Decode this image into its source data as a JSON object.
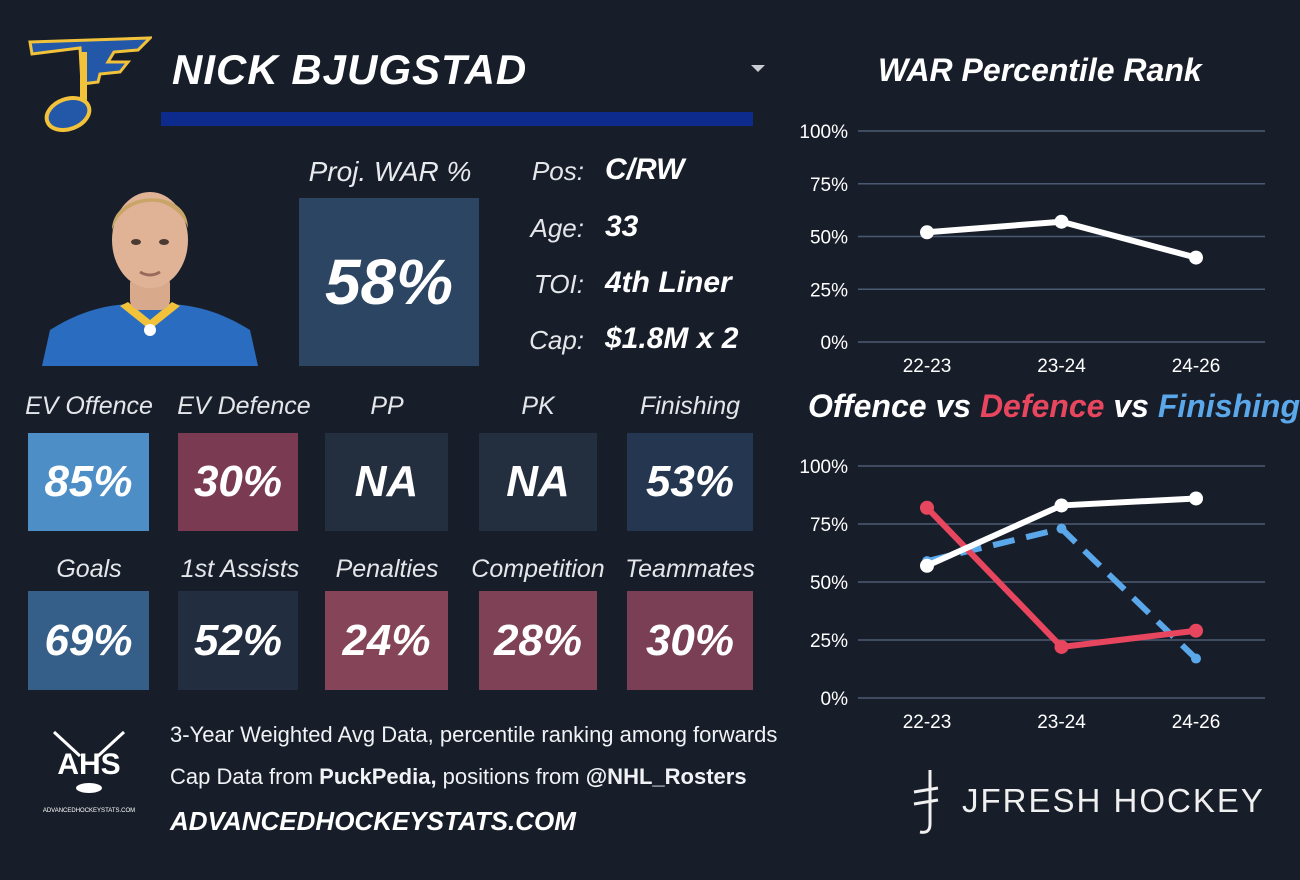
{
  "header": {
    "player_name": "NICK BJUGSTAD",
    "dropdown_icon": "triangle-down-icon",
    "team_logo": "blues-note-logo",
    "colors": {
      "name_bar": "#0c2b8c",
      "background": "#181e29"
    }
  },
  "profile": {
    "war_title": "Proj. WAR %",
    "war_value": "58%",
    "info": [
      {
        "label": "Pos:",
        "value": "C/RW"
      },
      {
        "label": "Age:",
        "value": "33"
      },
      {
        "label": "TOI:",
        "value": "4th Liner"
      },
      {
        "label": "Cap:",
        "value": "$1.8M x 2"
      }
    ]
  },
  "stats_row1": [
    {
      "label": "EV Offence",
      "value": "85%",
      "color": "#4d8ec7"
    },
    {
      "label": "EV Defence",
      "value": "30%",
      "color": "#7a3a52"
    },
    {
      "label": "PP",
      "value": "NA",
      "color": "#232f3f"
    },
    {
      "label": "PK",
      "value": "NA",
      "color": "#232f3f"
    },
    {
      "label": "Finishing",
      "value": "53%",
      "color": "#243650"
    }
  ],
  "stats_row2": [
    {
      "label": "Goals",
      "value": "69%",
      "color": "#355f89"
    },
    {
      "label": "1st Assists",
      "value": "52%",
      "color": "#222e3f"
    },
    {
      "label": "Penalties",
      "value": "24%",
      "color": "#864459"
    },
    {
      "label": "Competition",
      "value": "28%",
      "color": "#7e4156"
    },
    {
      "label": "Teammates",
      "value": "30%",
      "color": "#7a3f54"
    }
  ],
  "footer": {
    "note1": "3-Year Weighted Avg Data, percentile ranking among forwards",
    "note2_prefix": "Cap Data from ",
    "note2_source": "PuckPedia,",
    "note2_mid": " positions from ",
    "note2_handle": "@NHL_Rosters",
    "site": "ADVANCEDHOCKEYSTATS.COM",
    "ahs_logo_text": "AHS",
    "ahs_logo_subtext": "ADVANCEDHOCKEYSTATS.COM",
    "brand": "JFRESH HOCKEY"
  },
  "chart1_title": "WAR Percentile Rank",
  "chart2_title": {
    "part1": "Offence",
    "vs1": " vs ",
    "part2": "Defence",
    "vs2": " vs ",
    "part3": "Finishing"
  },
  "chart_data": [
    {
      "type": "line",
      "title": "WAR Percentile Rank",
      "categories": [
        "22-23",
        "23-24",
        "24-26"
      ],
      "yticks": [
        "0%",
        "25%",
        "50%",
        "75%",
        "100%"
      ],
      "ylim": [
        0,
        100
      ],
      "grid": true,
      "series": [
        {
          "values": [
            52,
            57,
            40
          ],
          "color": "#ffffff",
          "dashed": false
        }
      ]
    },
    {
      "type": "line",
      "title": "Offence vs Defence vs Finishing",
      "categories": [
        "22-23",
        "23-24",
        "24-26"
      ],
      "yticks": [
        "0%",
        "25%",
        "50%",
        "75%",
        "100%"
      ],
      "ylim": [
        0,
        100
      ],
      "grid": true,
      "series": [
        {
          "name": "Finishing",
          "values": [
            59,
            73,
            17
          ],
          "color": "#5aa7ea",
          "dashed": true
        },
        {
          "name": "Defence",
          "values": [
            82,
            22,
            29
          ],
          "color": "#e8465f",
          "dashed": false
        },
        {
          "name": "Offence",
          "values": [
            57,
            83,
            86
          ],
          "color": "#ffffff",
          "dashed": false
        }
      ]
    }
  ]
}
